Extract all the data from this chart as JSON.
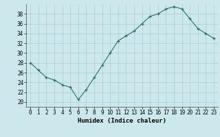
{
  "x": [
    0,
    1,
    2,
    3,
    4,
    5,
    6,
    7,
    8,
    9,
    10,
    11,
    12,
    13,
    14,
    15,
    16,
    17,
    18,
    19,
    20,
    21,
    22,
    23
  ],
  "y": [
    28,
    26.5,
    25,
    24.5,
    23.5,
    23,
    20.5,
    22.5,
    25,
    27.5,
    30,
    32.5,
    33.5,
    34.5,
    36,
    37.5,
    38,
    39,
    39.5,
    39,
    37,
    35,
    34,
    33
  ],
  "xlabel": "Humidex (Indice chaleur)",
  "xlim": [
    -0.5,
    23.5
  ],
  "ylim": [
    19,
    40
  ],
  "yticks": [
    20,
    22,
    24,
    26,
    28,
    30,
    32,
    34,
    36,
    38
  ],
  "xticks": [
    0,
    1,
    2,
    3,
    4,
    5,
    6,
    7,
    8,
    9,
    10,
    11,
    12,
    13,
    14,
    15,
    16,
    17,
    18,
    19,
    20,
    21,
    22,
    23
  ],
  "line_color": "#2d6e63",
  "marker_color": "#2d6e63",
  "bg_color": "#cce8ec",
  "grid_color": "#aacdd4",
  "label_fontsize": 6.5,
  "tick_fontsize": 5.5
}
